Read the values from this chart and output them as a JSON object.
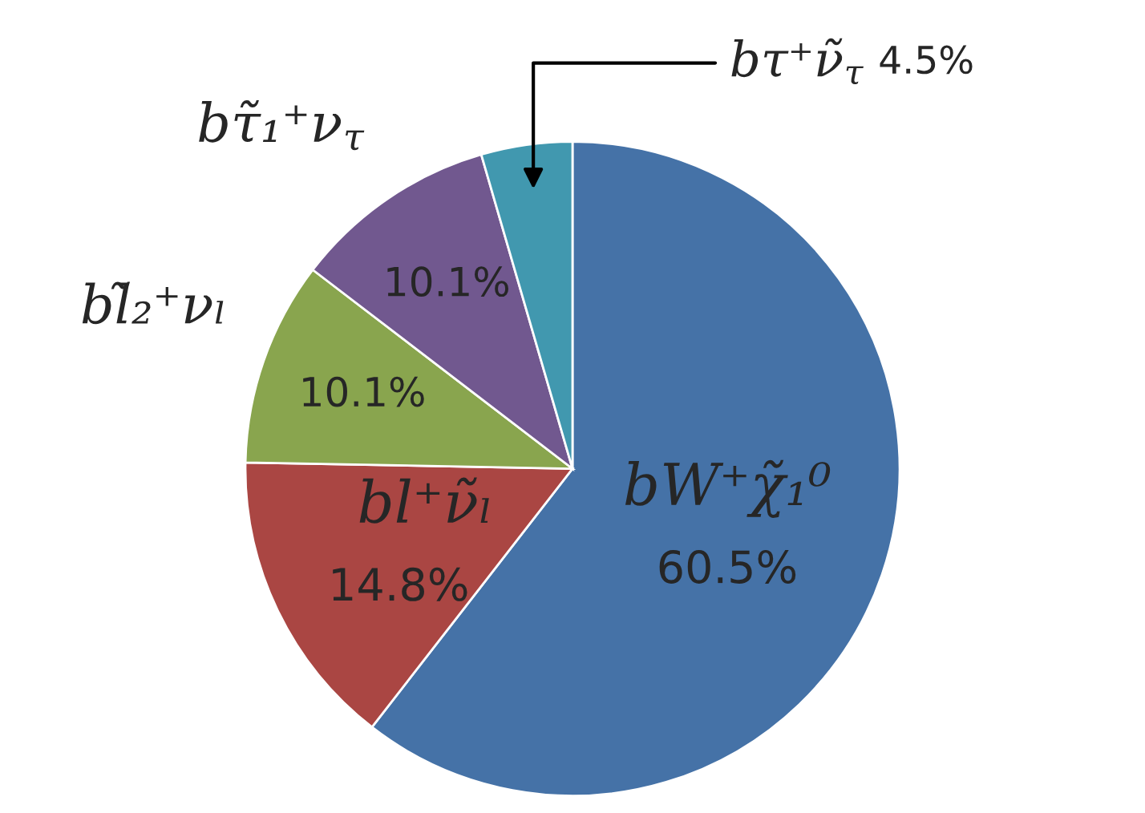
{
  "chart_data": {
    "type": "pie",
    "categories": [
      "bW⁺χ̃₁⁰",
      "bl⁺ν̃ₗ",
      "bl̃₂⁺νₗ",
      "bτ̃₁⁺ν$_{τ}$",
      "bτ⁺ν̃$_{τ}$"
    ],
    "values": [
      60.5,
      14.8,
      10.1,
      10.1,
      4.5
    ],
    "value_labels": [
      "60.5%",
      "14.8%",
      "10.1%",
      "10.1%",
      "4.5%"
    ],
    "colors": [
      "#4572a7",
      "#aa4643",
      "#89a54e",
      "#71588f",
      "#4198af"
    ]
  }
}
